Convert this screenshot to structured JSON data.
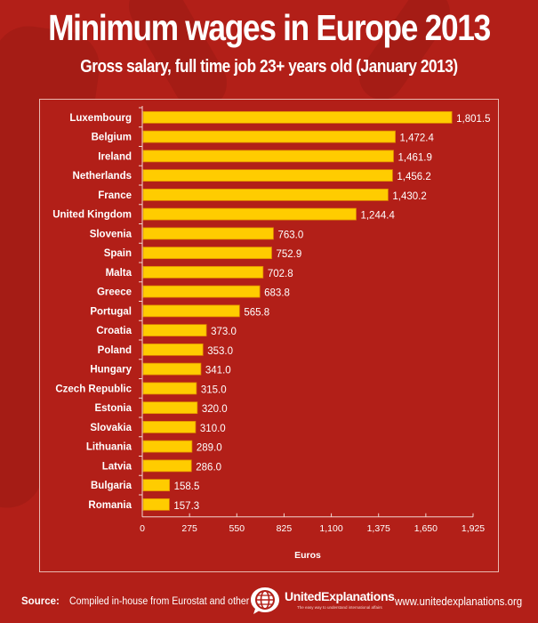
{
  "header": {
    "title": "Minimum wages in Europe 2013",
    "subtitle": "Gross salary, full time job 23+ years old (January 2013)"
  },
  "colors": {
    "background": "#b21f18",
    "bar_fill": "#ffcc00",
    "bar_border": "#e08a00",
    "text": "#ffffff"
  },
  "chart_data": {
    "type": "bar",
    "orientation": "horizontal",
    "title": "Minimum wages in Europe 2013",
    "subtitle": "Gross salary, full time job 23+ years old (January 2013)",
    "xlabel": "Euros",
    "ylabel": "",
    "xlim": [
      0,
      1925
    ],
    "xticks": [
      0,
      275,
      550,
      825,
      1100,
      1375,
      1650,
      1925
    ],
    "xtick_labels": [
      "0",
      "275",
      "550",
      "825",
      "1,100",
      "1,375",
      "1,650",
      "1,925"
    ],
    "grid": false,
    "categories": [
      "Luxembourg",
      "Belgium",
      "Ireland",
      "Netherlands",
      "France",
      "United Kingdom",
      "Slovenia",
      "Spain",
      "Malta",
      "Greece",
      "Portugal",
      "Croatia",
      "Poland",
      "Hungary",
      "Czech Republic",
      "Estonia",
      "Slovakia",
      "Lithuania",
      "Latvia",
      "Bulgaria",
      "Romania"
    ],
    "values": [
      1801.5,
      1472.4,
      1461.9,
      1456.2,
      1430.2,
      1244.4,
      763.0,
      752.9,
      702.8,
      683.8,
      565.8,
      373.0,
      353.0,
      341.0,
      315.0,
      320.0,
      310.0,
      289.0,
      286.0,
      158.5,
      157.3
    ],
    "value_labels": [
      "1,801.5",
      "1,472.4",
      "1,461.9",
      "1,456.2",
      "1,430.2",
      "1,244.4",
      "763.0",
      "752.9",
      "702.8",
      "683.8",
      "565.8",
      "373.0",
      "353.0",
      "341.0",
      "315.0",
      "320.0",
      "310.0",
      "289.0",
      "286.0",
      "158.5",
      "157.3"
    ]
  },
  "footer": {
    "source_label": "Source:",
    "source_text": "Compiled in-house from Eurostat and other data",
    "logo_name": "UnitedExplanations",
    "logo_tagline": "The easy way to understand international affairs",
    "website": "www.unitedexplanations.org"
  }
}
